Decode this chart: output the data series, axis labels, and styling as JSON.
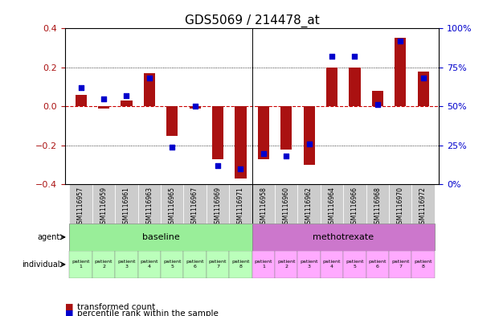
{
  "title": "GDS5069 / 214478_at",
  "samples": [
    "GSM1116957",
    "GSM1116959",
    "GSM1116961",
    "GSM1116963",
    "GSM1116965",
    "GSM1116967",
    "GSM1116969",
    "GSM1116971",
    "GSM1116958",
    "GSM1116960",
    "GSM1116962",
    "GSM1116964",
    "GSM1116966",
    "GSM1116968",
    "GSM1116970",
    "GSM1116972"
  ],
  "transformed_count": [
    0.06,
    -0.01,
    0.03,
    0.17,
    -0.15,
    -0.01,
    -0.27,
    -0.37,
    -0.27,
    -0.22,
    -0.3,
    0.2,
    0.2,
    0.08,
    0.35,
    0.18
  ],
  "percentile_rank": [
    62,
    55,
    57,
    68,
    24,
    50,
    12,
    10,
    20,
    18,
    26,
    82,
    82,
    51,
    92,
    68
  ],
  "ylim": [
    -0.4,
    0.4
  ],
  "yticks_left": [
    -0.4,
    -0.2,
    0.0,
    0.2,
    0.4
  ],
  "yticks_right": [
    0,
    25,
    50,
    75,
    100
  ],
  "bar_color": "#aa1111",
  "dot_color": "#0000cc",
  "zero_line_color": "#cc0000",
  "grid_color": "#000000",
  "agent_baseline_color": "#99ee99",
  "agent_methotrexate_color": "#cc77cc",
  "individual_baseline_color": "#bbffbb",
  "individual_methotrexate_color": "#ffaaff",
  "agent_labels": [
    "baseline",
    "methotrexate"
  ],
  "individual_labels": [
    "patient\n1",
    "patient\n2",
    "patient\n3",
    "patient\n4",
    "patient\n5",
    "patient\n6",
    "patient\n7",
    "patient\n8",
    "patient\n1",
    "patient\n2",
    "patient\n3",
    "patient\n4",
    "patient\n5",
    "patient\n6",
    "patient\n7",
    "patient\n8"
  ],
  "legend_bar_label": "transformed count",
  "legend_dot_label": "percentile rank within the sample",
  "sample_box_color": "#cccccc",
  "arrow_color": "#555555"
}
